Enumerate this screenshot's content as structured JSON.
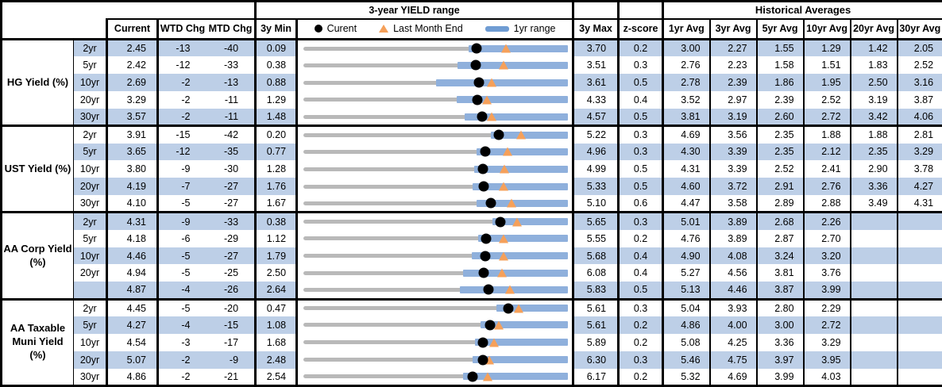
{
  "header": {
    "range_title": "3-year YIELD range",
    "hist_title": "Historical Averages",
    "col_current": "Current",
    "col_wtd": "WTD Chg",
    "col_mtd": "MTD Chg",
    "col_min": "3y Min",
    "col_max": "3y Max",
    "col_z": "z-score",
    "avg_cols": [
      "1yr Avg",
      "3yr Avg",
      "5yr Avg",
      "10yr Avg",
      "20yr Avg",
      "30yr Avg"
    ],
    "legend": {
      "current": "Curent",
      "last_month": "Last Month End",
      "range": "1yr range"
    }
  },
  "colors": {
    "row_shade": "#bdcfe7",
    "range_bar_blue": "#8fb0dc",
    "legend_dash_blue": "#6f9cd3",
    "track_gray": "#b9b9b9",
    "triangle_orange": "#f5a05a",
    "dot_black": "#000000"
  },
  "chart_data": {
    "type": "table",
    "title": "3-year YIELD range",
    "note": "Each row is a bullet chart from 3y Min to 3y Max; blue bar = 1yr range (high = 3y Max), black dot = current, orange triangle = last month end (current - MTD chg in bps / 100). yr1_low estimated from pixels.",
    "sections": [
      {
        "label": "HG Yield (%)",
        "rows": [
          {
            "tenor": "2yr",
            "current": "2.45",
            "wtd": -13,
            "mtd": -40,
            "min3y": "0.09",
            "max3y": "3.70",
            "yr1_low": 2.34,
            "z": "0.2",
            "avgs": [
              "3.00",
              "2.27",
              "1.55",
              "1.29",
              "1.42",
              "2.05"
            ]
          },
          {
            "tenor": "5yr",
            "current": "2.42",
            "wtd": -12,
            "mtd": -33,
            "min3y": "0.38",
            "max3y": "3.51",
            "yr1_low": 2.2,
            "z": "0.3",
            "avgs": [
              "2.76",
              "2.23",
              "1.58",
              "1.51",
              "1.83",
              "2.52"
            ]
          },
          {
            "tenor": "10yr",
            "current": "2.69",
            "wtd": -2,
            "mtd": -13,
            "min3y": "0.88",
            "max3y": "3.61",
            "yr1_low": 2.25,
            "z": "0.5",
            "avgs": [
              "2.78",
              "2.39",
              "1.86",
              "1.95",
              "2.50",
              "3.16"
            ]
          },
          {
            "tenor": "20yr",
            "current": "3.29",
            "wtd": -2,
            "mtd": -11,
            "min3y": "1.29",
            "max3y": "4.33",
            "yr1_low": 3.05,
            "z": "0.4",
            "avgs": [
              "3.52",
              "2.97",
              "2.39",
              "2.52",
              "3.19",
              "3.87"
            ]
          },
          {
            "tenor": "30yr",
            "current": "3.57",
            "wtd": -2,
            "mtd": -11,
            "min3y": "1.48",
            "max3y": "4.57",
            "yr1_low": 3.36,
            "z": "0.5",
            "avgs": [
              "3.81",
              "3.19",
              "2.60",
              "2.72",
              "3.42",
              "4.06"
            ]
          }
        ]
      },
      {
        "label": "UST Yield (%)",
        "rows": [
          {
            "tenor": "2yr",
            "current": "3.91",
            "wtd": -15,
            "mtd": -42,
            "min3y": "0.20",
            "max3y": "5.22",
            "yr1_low": 3.76,
            "z": "0.3",
            "avgs": [
              "4.69",
              "3.56",
              "2.35",
              "1.88",
              "1.88",
              "2.81"
            ]
          },
          {
            "tenor": "5yr",
            "current": "3.65",
            "wtd": -12,
            "mtd": -35,
            "min3y": "0.77",
            "max3y": "4.96",
            "yr1_low": 3.51,
            "z": "0.3",
            "avgs": [
              "4.30",
              "3.39",
              "2.35",
              "2.12",
              "2.35",
              "3.29"
            ]
          },
          {
            "tenor": "10yr",
            "current": "3.80",
            "wtd": -9,
            "mtd": -30,
            "min3y": "1.28",
            "max3y": "4.99",
            "yr1_low": 3.68,
            "z": "0.5",
            "avgs": [
              "4.31",
              "3.39",
              "2.52",
              "2.41",
              "2.90",
              "3.78"
            ]
          },
          {
            "tenor": "20yr",
            "current": "4.19",
            "wtd": -7,
            "mtd": -27,
            "min3y": "1.76",
            "max3y": "5.33",
            "yr1_low": 4.04,
            "z": "0.5",
            "avgs": [
              "4.60",
              "3.72",
              "2.91",
              "2.76",
              "3.36",
              "4.27"
            ]
          },
          {
            "tenor": "30yr",
            "current": "4.10",
            "wtd": -5,
            "mtd": -27,
            "min3y": "1.67",
            "max3y": "5.10",
            "yr1_low": 3.91,
            "z": "0.6",
            "avgs": [
              "4.47",
              "3.58",
              "2.89",
              "2.88",
              "3.49",
              "4.31"
            ]
          }
        ]
      },
      {
        "label": "AA Corp Yield\n(%)",
        "rows": [
          {
            "tenor": "2yr",
            "current": "4.31",
            "wtd": -9,
            "mtd": -33,
            "min3y": "0.38",
            "max3y": "5.65",
            "yr1_low": 4.14,
            "z": "0.3",
            "avgs": [
              "5.01",
              "3.89",
              "2.68",
              "2.26",
              "",
              ""
            ]
          },
          {
            "tenor": "5yr",
            "current": "4.18",
            "wtd": -6,
            "mtd": -29,
            "min3y": "1.12",
            "max3y": "5.55",
            "yr1_low": 4.04,
            "z": "0.2",
            "avgs": [
              "4.76",
              "3.89",
              "2.87",
              "2.70",
              "",
              ""
            ]
          },
          {
            "tenor": "10yr",
            "current": "4.46",
            "wtd": -5,
            "mtd": -27,
            "min3y": "1.79",
            "max3y": "5.68",
            "yr1_low": 4.27,
            "z": "0.4",
            "avgs": [
              "4.90",
              "4.08",
              "3.24",
              "3.20",
              "",
              ""
            ]
          },
          {
            "tenor": "20yr",
            "current": "4.94",
            "wtd": -5,
            "mtd": -25,
            "min3y": "2.50",
            "max3y": "6.08",
            "yr1_low": 4.66,
            "z": "0.4",
            "avgs": [
              "5.27",
              "4.56",
              "3.81",
              "3.76",
              "",
              ""
            ]
          },
          {
            "tenor": "",
            "current": "4.87",
            "wtd": -4,
            "mtd": -26,
            "min3y": "2.64",
            "max3y": "5.83",
            "yr1_low": 4.53,
            "z": "0.5",
            "avgs": [
              "5.13",
              "4.46",
              "3.87",
              "3.99",
              "",
              ""
            ]
          }
        ]
      },
      {
        "label": "AA Taxable\nMuni Yield\n(%)",
        "rows": [
          {
            "tenor": "2yr",
            "current": "4.45",
            "wtd": -5,
            "mtd": -20,
            "min3y": "0.47",
            "max3y": "5.61",
            "yr1_low": 4.22,
            "z": "0.3",
            "avgs": [
              "5.04",
              "3.93",
              "2.80",
              "2.29",
              "",
              ""
            ]
          },
          {
            "tenor": "5yr",
            "current": "4.27",
            "wtd": -4,
            "mtd": -15,
            "min3y": "1.08",
            "max3y": "5.61",
            "yr1_low": 4.11,
            "z": "0.2",
            "avgs": [
              "4.86",
              "4.00",
              "3.00",
              "2.72",
              "",
              ""
            ]
          },
          {
            "tenor": "10yr",
            "current": "4.54",
            "wtd": -3,
            "mtd": -17,
            "min3y": "1.68",
            "max3y": "5.89",
            "yr1_low": 4.41,
            "z": "0.2",
            "avgs": [
              "5.08",
              "4.25",
              "3.36",
              "3.29",
              "",
              ""
            ]
          },
          {
            "tenor": "20yr",
            "current": "5.07",
            "wtd": -2,
            "mtd": -9,
            "min3y": "2.48",
            "max3y": "6.30",
            "yr1_low": 4.92,
            "z": "0.3",
            "avgs": [
              "5.46",
              "4.75",
              "3.97",
              "3.95",
              "",
              ""
            ]
          },
          {
            "tenor": "30yr",
            "current": "4.86",
            "wtd": -2,
            "mtd": -21,
            "min3y": "2.54",
            "max3y": "6.17",
            "yr1_low": 4.73,
            "z": "0.2",
            "avgs": [
              "5.32",
              "4.69",
              "3.99",
              "4.03",
              "",
              ""
            ]
          }
        ]
      }
    ]
  }
}
